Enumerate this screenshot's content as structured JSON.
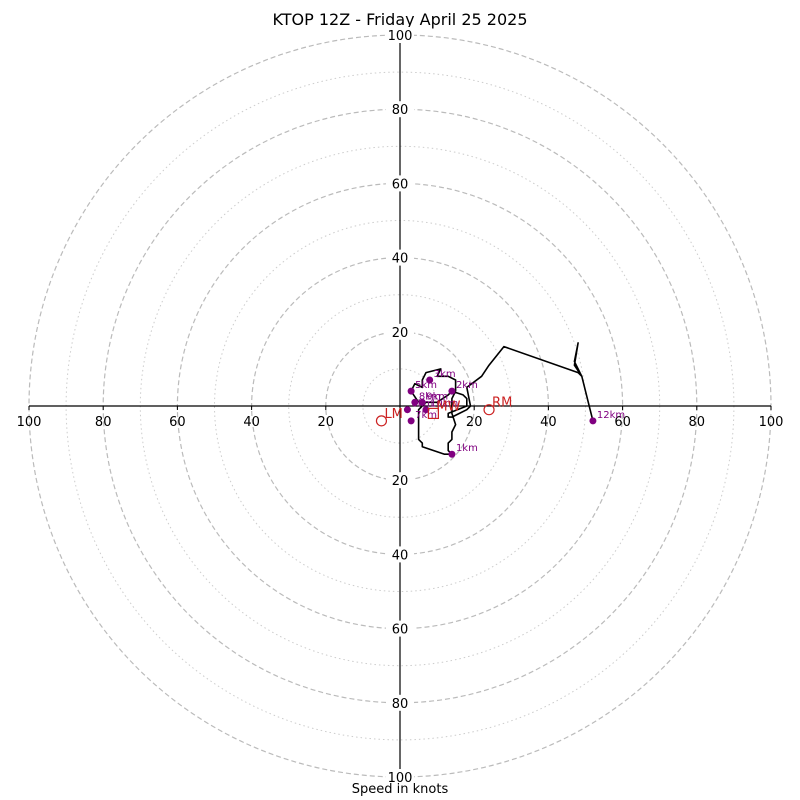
{
  "chart_data": {
    "type": "hodograph",
    "title": "KTOP 12Z - Friday April 25 2025",
    "xlabel": "Speed in knots",
    "range": [
      -100,
      100
    ],
    "rings_major": [
      20,
      40,
      60,
      80,
      100
    ],
    "rings_minor": [
      10,
      30,
      50,
      70,
      90
    ],
    "tick_values": [
      20,
      40,
      60,
      80,
      100
    ],
    "colors": {
      "trace": "#000000",
      "height_marker": "#800080",
      "motion": "#cc2222",
      "ring": "#bbbbbb",
      "minor_ring": "#cccccc"
    },
    "trace": [
      [
        5,
        1
      ],
      [
        3,
        4
      ],
      [
        4,
        6
      ],
      [
        6,
        5
      ],
      [
        6,
        7
      ],
      [
        7,
        9
      ],
      [
        11,
        10
      ],
      [
        10,
        8
      ],
      [
        13,
        8
      ],
      [
        15,
        7
      ],
      [
        15,
        4
      ],
      [
        14,
        2
      ],
      [
        14,
        0
      ],
      [
        14,
        -2
      ],
      [
        15,
        -5
      ],
      [
        14,
        -7
      ],
      [
        14,
        -9
      ],
      [
        13,
        -10
      ],
      [
        13,
        -12
      ],
      [
        14,
        -13
      ],
      [
        12,
        -13
      ],
      [
        9,
        -12
      ],
      [
        6,
        -11
      ],
      [
        6,
        -10
      ],
      [
        5,
        -9
      ],
      [
        5,
        -8
      ],
      [
        5,
        -7
      ],
      [
        5,
        -6
      ],
      [
        5,
        -4
      ],
      [
        5,
        -3
      ],
      [
        5,
        -2
      ],
      [
        5,
        -1
      ],
      [
        6,
        0
      ],
      [
        7,
        1
      ],
      [
        8,
        1
      ],
      [
        9,
        1
      ],
      [
        10,
        1
      ],
      [
        13,
        3
      ],
      [
        14,
        4
      ],
      [
        17,
        3
      ],
      [
        18,
        2
      ],
      [
        18,
        0
      ],
      [
        13,
        -2
      ],
      [
        13,
        -3
      ],
      [
        14,
        -3
      ],
      [
        16,
        -2
      ],
      [
        18,
        -1
      ],
      [
        19,
        0
      ],
      [
        18,
        5
      ],
      [
        22,
        8
      ],
      [
        24,
        11
      ],
      [
        28,
        16
      ],
      [
        48,
        9
      ],
      [
        49,
        8
      ],
      [
        47,
        11
      ],
      [
        48,
        17
      ],
      [
        47,
        12
      ],
      [
        49,
        8
      ],
      [
        52,
        -4
      ]
    ],
    "height_markers": [
      {
        "label": "1km",
        "u": 14,
        "v": -13
      },
      {
        "label": "2km",
        "u": 14,
        "v": 4
      },
      {
        "label": "3km",
        "u": 8,
        "v": 7
      },
      {
        "label": "5km",
        "u": 3,
        "v": 4
      },
      {
        "label": "6km",
        "u": 2,
        "v": -1
      },
      {
        "label": "7km",
        "u": 3,
        "v": -4
      },
      {
        "label": "8km",
        "u": 4,
        "v": 1
      },
      {
        "label": "9km",
        "u": 6,
        "v": 1
      },
      {
        "label": "10km",
        "u": 7,
        "v": -1
      },
      {
        "label": "12km",
        "u": 52,
        "v": -4
      }
    ],
    "motions": [
      {
        "label": "RM",
        "u": 24,
        "v": -1,
        "marker": "circle"
      },
      {
        "label": "LM",
        "u": -5,
        "v": -4,
        "marker": "circle"
      },
      {
        "label": "MW",
        "u": 9,
        "v": -2,
        "marker": "square"
      }
    ]
  }
}
